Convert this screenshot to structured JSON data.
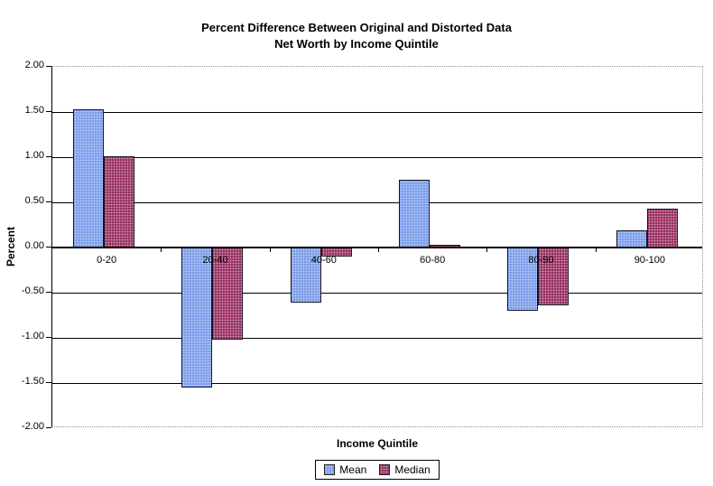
{
  "title": {
    "line1": "Percent Difference Between Original and Distorted Data",
    "line2": "Net Worth by Income Quintile"
  },
  "chart_data": {
    "type": "bar",
    "categories": [
      "0-20",
      "20-40",
      "40-60",
      "60-80",
      "80-90",
      "90-100"
    ],
    "series": [
      {
        "name": "Mean",
        "color": "#7e9fea",
        "values": [
          1.53,
          -1.55,
          -0.61,
          0.75,
          -0.7,
          0.19
        ]
      },
      {
        "name": "Median",
        "color": "#9c3566",
        "values": [
          1.01,
          -1.02,
          -0.1,
          0.03,
          -0.64,
          0.43
        ]
      }
    ],
    "xlabel": "Income Quintile",
    "ylabel": "Percent",
    "ylim": [
      -2,
      2
    ],
    "ytick_step": 0.5,
    "ytick_labels": [
      "2.00",
      "1.50",
      "1.00",
      "0.50",
      "0.00",
      "-0.50",
      "-1.00",
      "-1.50",
      "-2.00"
    ],
    "grid": true,
    "legend_position": "bottom"
  }
}
